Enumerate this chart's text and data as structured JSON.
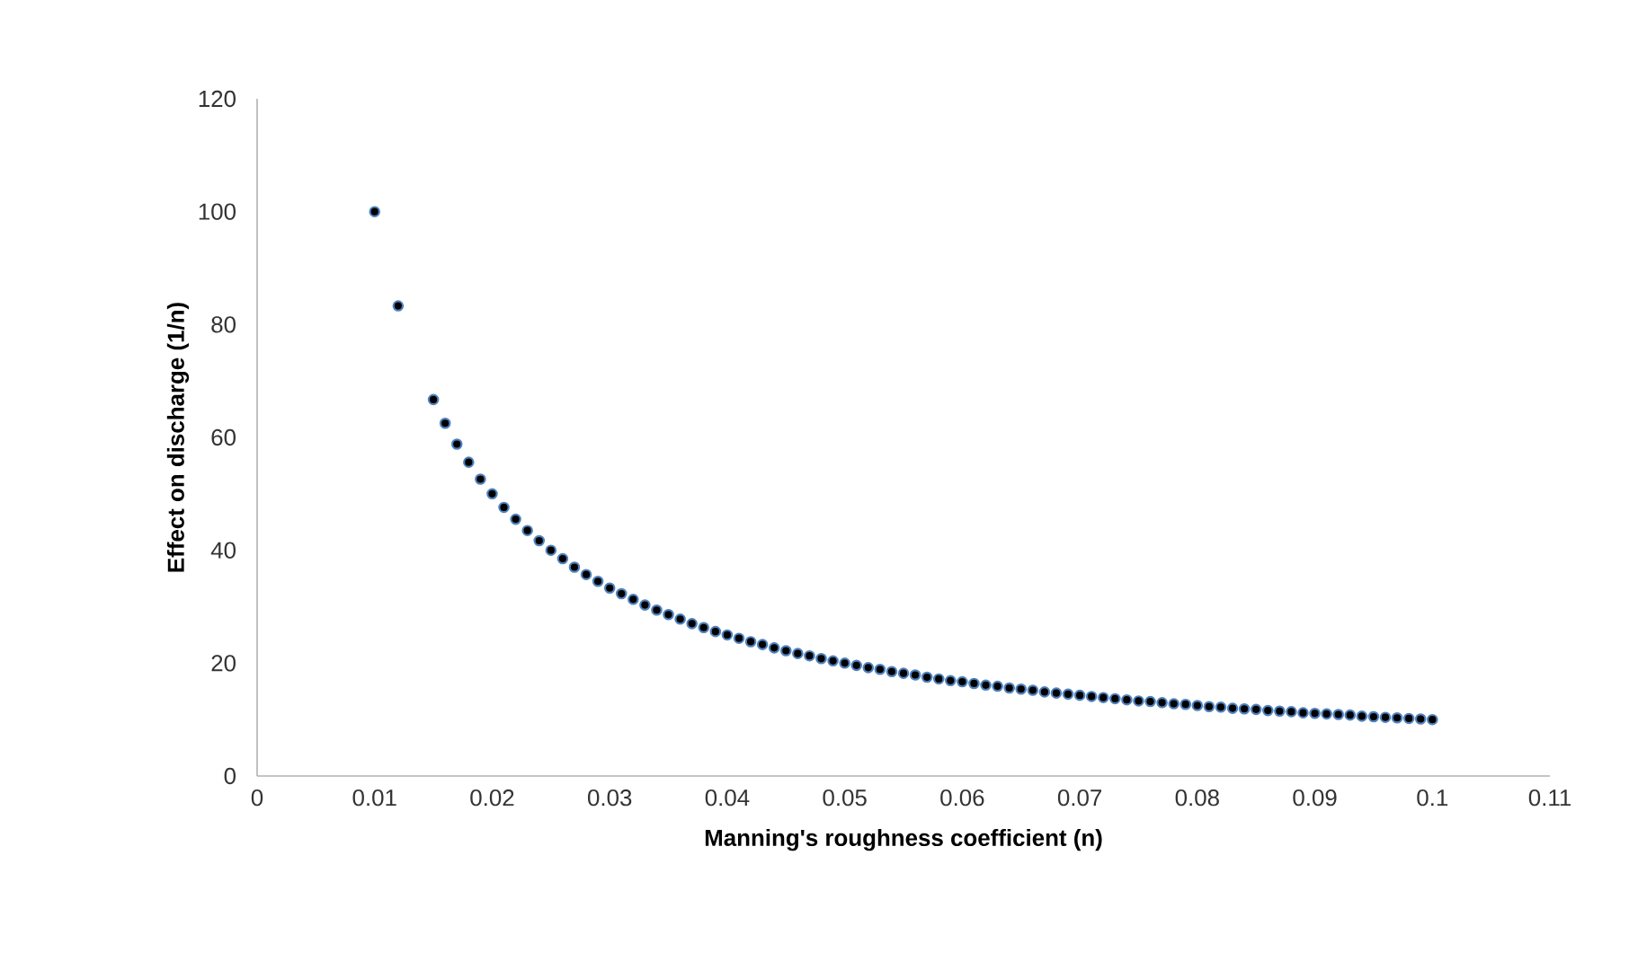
{
  "chart_data": {
    "type": "scatter",
    "xlabel": "Manning's roughness coefficient (n)",
    "ylabel": "Effect on discharge (1/n)",
    "xlim": [
      0,
      0.11
    ],
    "xticks": [
      0,
      0.01,
      0.02,
      0.03,
      0.04,
      0.05,
      0.06,
      0.07,
      0.08,
      0.09,
      0.1,
      0.11
    ],
    "ylim": [
      0,
      120
    ],
    "yticks": [
      0,
      20,
      40,
      60,
      80,
      100,
      120
    ],
    "grid": false,
    "marker": "circle",
    "series": [
      {
        "color": "#4f81bd",
        "x": [
          0.01,
          0.012,
          0.015,
          0.016,
          0.017,
          0.018,
          0.019,
          0.02,
          0.021,
          0.022,
          0.023,
          0.024,
          0.025,
          0.026,
          0.027,
          0.028,
          0.029,
          0.03,
          0.031,
          0.032,
          0.033,
          0.034,
          0.035,
          0.036,
          0.037,
          0.038,
          0.039,
          0.04,
          0.041,
          0.042,
          0.043,
          0.044,
          0.045,
          0.046,
          0.047,
          0.048,
          0.049,
          0.05,
          0.051,
          0.052,
          0.053,
          0.054,
          0.055,
          0.056,
          0.057,
          0.058,
          0.059,
          0.06,
          0.061,
          0.062,
          0.063,
          0.064,
          0.065,
          0.066,
          0.067,
          0.068,
          0.069,
          0.07,
          0.071,
          0.072,
          0.073,
          0.074,
          0.075,
          0.076,
          0.077,
          0.078,
          0.079,
          0.08,
          0.081,
          0.082,
          0.083,
          0.084,
          0.085,
          0.086,
          0.087,
          0.088,
          0.089,
          0.09,
          0.091,
          0.092,
          0.093,
          0.094,
          0.095,
          0.096,
          0.097,
          0.098,
          0.099,
          0.1
        ],
        "values": [
          100,
          83.3,
          66.7,
          62.5,
          58.8,
          55.6,
          52.6,
          50,
          47.6,
          45.5,
          43.5,
          41.7,
          40,
          38.5,
          37,
          35.7,
          34.5,
          33.3,
          32.3,
          31.3,
          30.3,
          29.4,
          28.6,
          27.8,
          27,
          26.3,
          25.6,
          25,
          24.4,
          23.8,
          23.3,
          22.7,
          22.2,
          21.7,
          21.3,
          20.8,
          20.4,
          20,
          19.6,
          19.2,
          18.9,
          18.5,
          18.2,
          17.9,
          17.5,
          17.2,
          16.9,
          16.7,
          16.4,
          16.1,
          15.9,
          15.6,
          15.4,
          15.2,
          14.9,
          14.7,
          14.5,
          14.3,
          14.1,
          13.9,
          13.7,
          13.5,
          13.3,
          13.2,
          13,
          12.8,
          12.7,
          12.5,
          12.3,
          12.2,
          12,
          11.9,
          11.8,
          11.6,
          11.5,
          11.4,
          11.2,
          11.1,
          11,
          10.9,
          10.8,
          10.6,
          10.5,
          10.4,
          10.3,
          10.2,
          10.1,
          10
        ]
      }
    ]
  }
}
